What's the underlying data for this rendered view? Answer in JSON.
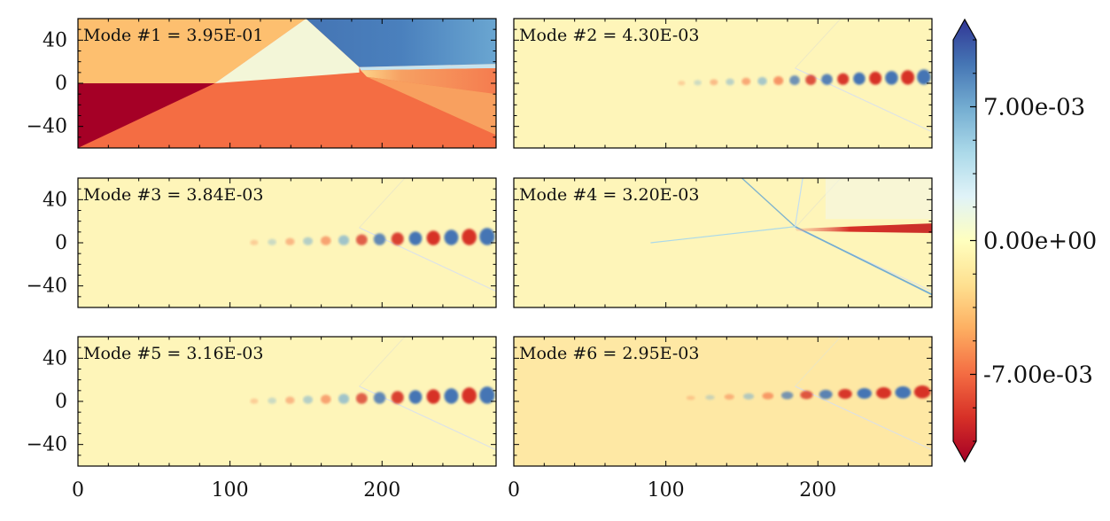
{
  "chart_data": {
    "type": "heatmap",
    "layout": "3x2 subplot grid, shared axes, single vertical colorbar on the right",
    "x": {
      "range": [
        0,
        275
      ],
      "ticks": [
        0,
        100,
        200
      ],
      "tick_labels": [
        "0",
        "100",
        "200"
      ],
      "minor_step": 20
    },
    "y": {
      "range": [
        -60,
        60
      ],
      "ticks": [
        40,
        0,
        -40
      ],
      "tick_labels": [
        "40",
        "0",
        "−40"
      ],
      "minor_step": 10
    },
    "panels": [
      {
        "id": 1,
        "title": "Mode #1 = 3.95E-01",
        "pattern": "base-flow"
      },
      {
        "id": 2,
        "title": "Mode #2 = 4.30E-03",
        "pattern": "wavepacket"
      },
      {
        "id": 3,
        "title": "Mode #3 = 3.84E-03",
        "pattern": "wavepacket"
      },
      {
        "id": 4,
        "title": "Mode #4 = 3.20E-03",
        "pattern": "shock-structure"
      },
      {
        "id": 5,
        "title": "Mode #5 = 3.16E-03",
        "pattern": "wavepacket"
      },
      {
        "id": 6,
        "title": "Mode #6 = 2.95E-03",
        "pattern": "wavepacket"
      }
    ],
    "colorbar": {
      "colormap": "RdYlBu",
      "range": [
        -0.0105,
        0.0105
      ],
      "extend": "both",
      "ticks": [
        0.007,
        0.0,
        -0.007
      ],
      "tick_labels": [
        "7.00e-03",
        "0.00e+00",
        "-7.00e-03"
      ]
    }
  },
  "colors": {
    "dark_red": "#a50026",
    "red": "#d73027",
    "orange_red": "#f46d43",
    "orange": "#fdae61",
    "light_orange": "#fee090",
    "pale": "#ffffbf",
    "pale_blue": "#e0f3f8",
    "light_blue": "#abd9e9",
    "mid_blue": "#74add1",
    "blue": "#4575b4",
    "dark_blue": "#313695"
  }
}
